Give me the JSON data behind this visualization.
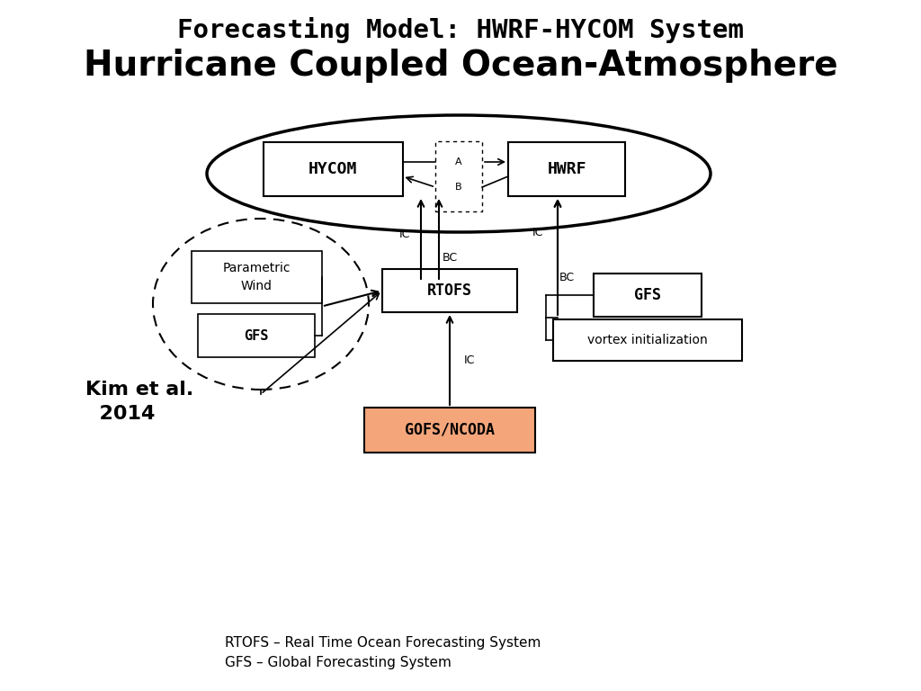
{
  "title_line1": "Forecasting Model: HWRF-HYCOM System",
  "title_line2": "Hurricane Coupled Ocean-Atmosphere",
  "bg_color": "#ffffff",
  "text_color": "#000000",
  "footnote1": "RTOFS – Real Time Ocean Forecasting System",
  "footnote2": "GFS – Global Forecasting System",
  "citation_line1": "Kim et al.",
  "citation_line2": "  2014",
  "gofs_facecolor": "#f4a57a",
  "gofs_edgecolor": "#c0392b"
}
